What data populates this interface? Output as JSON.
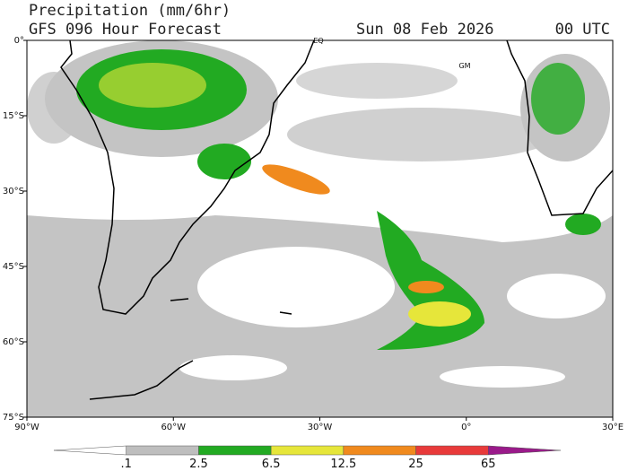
{
  "header": {
    "title": "Precipitation (mm/6hr)",
    "subtitle": "GFS 096 Hour Forecast",
    "date": "Sun 08 Feb 2026",
    "time": "00 UTC"
  },
  "map": {
    "lat_ticks": [
      {
        "value": 0,
        "label": "0°"
      },
      {
        "value": -15,
        "label": "15°S"
      },
      {
        "value": -30,
        "label": "30°S"
      },
      {
        "value": -45,
        "label": "45°S"
      },
      {
        "value": -60,
        "label": "60°S"
      },
      {
        "value": -75,
        "label": "75°S"
      }
    ],
    "lon_ticks": [
      {
        "value": -90,
        "label": "90°W"
      },
      {
        "value": -60,
        "label": "60°W"
      },
      {
        "value": -30,
        "label": "30°W"
      },
      {
        "value": 0,
        "label": "0°"
      },
      {
        "value": 30,
        "label": "30°E"
      }
    ],
    "labels": [
      "EQ",
      "GM"
    ]
  },
  "colorbar": {
    "bounds": [
      {
        "value": 0.1,
        "label": ".1"
      },
      2.5,
      6.5,
      12.5,
      25,
      65
    ],
    "colors": [
      "#ffffff",
      "#bebebe",
      "#22aa22",
      "#e6e63a",
      "#f08a1e",
      "#e83a3a",
      "#9a1a8a"
    ]
  }
}
